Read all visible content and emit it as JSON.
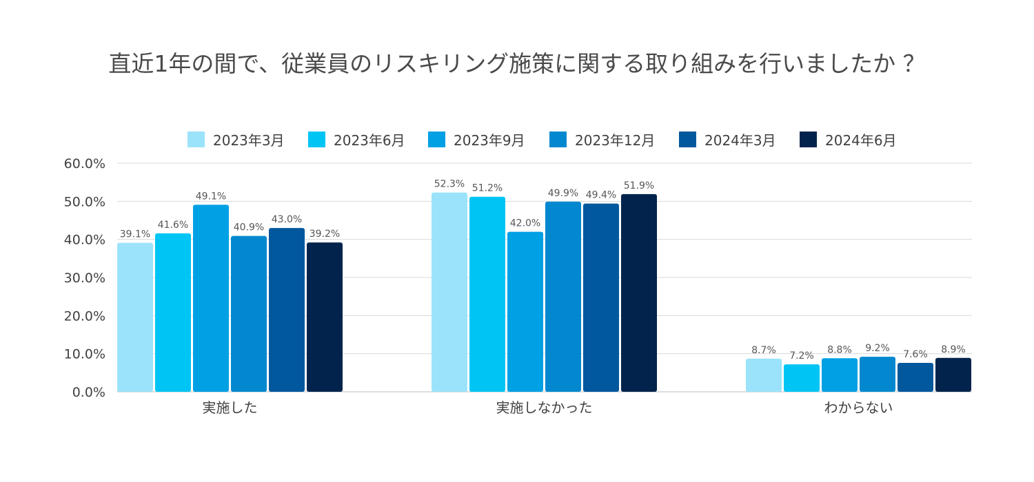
{
  "chart_data": {
    "type": "bar",
    "title": "直近1年の間で、従業員のリスキリング施策に関する取り組みを行いましたか ？",
    "categories": [
      "実施した",
      "実施しなかった",
      "わからない"
    ],
    "series": [
      {
        "name": "2023年3月",
        "color": "#9be3fb",
        "values": [
          39.1,
          52.3,
          8.7
        ],
        "labels": [
          "39.1%",
          "52.3%",
          "8.7%"
        ]
      },
      {
        "name": "2023年6月",
        "color": "#00c5f4",
        "values": [
          41.6,
          51.2,
          7.2
        ],
        "labels": [
          "41.6%",
          "51.2%",
          "7.2%"
        ]
      },
      {
        "name": "2023年9月",
        "color": "#00a0e4",
        "values": [
          49.1,
          42.0,
          8.8
        ],
        "labels": [
          "49.1%",
          "42.0%",
          "8.8%"
        ]
      },
      {
        "name": "2023年12月",
        "color": "#0388cf",
        "values": [
          40.9,
          49.9,
          9.2
        ],
        "labels": [
          "40.9%",
          "49.9%",
          "9.2%"
        ]
      },
      {
        "name": "2024年3月",
        "color": "#01589d",
        "values": [
          43.0,
          49.4,
          7.6
        ],
        "labels": [
          "43.0%",
          "49.4%",
          "7.6%"
        ]
      },
      {
        "name": "2024年6月",
        "color": "#02244c",
        "values": [
          39.2,
          51.9,
          8.9
        ],
        "labels": [
          "39.2%",
          "51.9%",
          "8.9%"
        ]
      }
    ],
    "ylim": [
      0,
      60
    ],
    "yticks": [
      0,
      10,
      20,
      30,
      40,
      50,
      60
    ],
    "ytick_labels": [
      "0.0%",
      "10.0%",
      "20.0%",
      "30.0%",
      "40.0%",
      "50.0%",
      "60.0%"
    ],
    "xlabel": "",
    "ylabel": "",
    "grid": true,
    "legend_position": "top"
  }
}
